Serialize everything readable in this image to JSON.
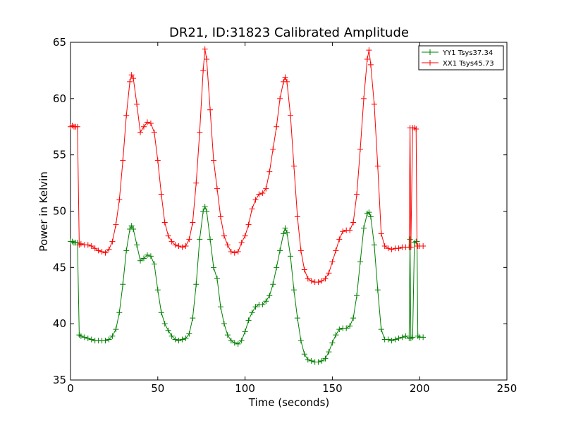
{
  "chart_data": {
    "type": "line",
    "title": "DR21, ID:31823 Calibrated Amplitude",
    "xlabel": "Time (seconds)",
    "ylabel": "Power in Kelvin",
    "xlim": [
      0,
      250
    ],
    "ylim": [
      35,
      65
    ],
    "xticks": [
      "0",
      "50",
      "100",
      "150",
      "200",
      "250"
    ],
    "yticks": [
      "35",
      "40",
      "45",
      "50",
      "55",
      "60",
      "65"
    ],
    "grid": false,
    "legend_position": "top-right",
    "marker": "plus",
    "series": [
      {
        "name": "YY1 Tsys37.34",
        "color": "#008000",
        "x": [
          0,
          1,
          2,
          3,
          4,
          5,
          6,
          8,
          10,
          12,
          14,
          16,
          18,
          20,
          22,
          24,
          26,
          28,
          30,
          32,
          34,
          35,
          36,
          38,
          40,
          42,
          44,
          46,
          48,
          50,
          52,
          54,
          56,
          58,
          60,
          62,
          64,
          66,
          68,
          70,
          72,
          74,
          76,
          77,
          78,
          80,
          82,
          84,
          86,
          88,
          90,
          92,
          94,
          96,
          98,
          100,
          102,
          104,
          106,
          108,
          110,
          112,
          114,
          116,
          118,
          120,
          122,
          123,
          124,
          126,
          128,
          130,
          132,
          134,
          136,
          138,
          140,
          142,
          144,
          146,
          148,
          150,
          152,
          154,
          156,
          158,
          160,
          162,
          164,
          166,
          168,
          170,
          171,
          172,
          174,
          176,
          178,
          180,
          182,
          184,
          186,
          188,
          190,
          192,
          194,
          194.5,
          195,
          196,
          197,
          198,
          198.5,
          199,
          200,
          202
        ],
        "y": [
          47.3,
          47.3,
          47.2,
          47.2,
          47.2,
          39.0,
          38.9,
          38.8,
          38.7,
          38.6,
          38.5,
          38.5,
          38.5,
          38.5,
          38.6,
          38.9,
          39.5,
          41.0,
          43.5,
          46.5,
          48.4,
          48.7,
          48.4,
          47.0,
          45.6,
          45.8,
          46.1,
          46.0,
          45.3,
          43.0,
          41.0,
          40.0,
          39.4,
          38.9,
          38.6,
          38.5,
          38.6,
          38.7,
          39.1,
          40.5,
          43.5,
          47.5,
          50.0,
          50.4,
          50.0,
          47.5,
          45.0,
          44.0,
          41.5,
          40.0,
          39.0,
          38.5,
          38.3,
          38.2,
          38.5,
          39.3,
          40.3,
          41.0,
          41.5,
          41.7,
          41.7,
          42.0,
          42.5,
          43.5,
          45.0,
          46.5,
          48.0,
          48.5,
          48.1,
          46.0,
          43.0,
          40.5,
          38.5,
          37.3,
          36.8,
          36.7,
          36.6,
          36.6,
          36.7,
          36.9,
          37.5,
          38.3,
          39.0,
          39.5,
          39.6,
          39.6,
          39.8,
          40.5,
          42.5,
          45.5,
          48.5,
          49.8,
          49.9,
          49.5,
          47.0,
          43.0,
          39.5,
          38.6,
          38.6,
          38.5,
          38.6,
          38.7,
          38.8,
          38.9,
          38.7,
          47.5,
          38.7,
          38.8,
          47.2,
          47.3,
          47.3,
          38.9,
          38.8,
          38.8
        ]
      },
      {
        "name": "XX1 Tsys45.73",
        "color": "#ff0000",
        "x": [
          0,
          1,
          2,
          3,
          4,
          5,
          6,
          8,
          10,
          12,
          14,
          16,
          18,
          20,
          22,
          24,
          26,
          28,
          30,
          32,
          34,
          35,
          36,
          38,
          40,
          42,
          44,
          46,
          48,
          50,
          52,
          54,
          56,
          58,
          60,
          62,
          64,
          66,
          68,
          70,
          72,
          74,
          76,
          77,
          78,
          80,
          82,
          84,
          86,
          88,
          90,
          92,
          94,
          96,
          98,
          100,
          102,
          104,
          106,
          108,
          110,
          112,
          114,
          116,
          118,
          120,
          122,
          123,
          124,
          126,
          128,
          130,
          132,
          134,
          136,
          138,
          140,
          142,
          144,
          146,
          148,
          150,
          152,
          154,
          156,
          158,
          160,
          162,
          164,
          166,
          168,
          170,
          171,
          172,
          174,
          176,
          178,
          180,
          182,
          184,
          186,
          188,
          190,
          192,
          194,
          194.5,
          195,
          196,
          197,
          198,
          198.5,
          199,
          200,
          202
        ],
        "y": [
          57.5,
          57.6,
          57.5,
          57.5,
          57.5,
          47.0,
          47.1,
          47.0,
          47.0,
          46.9,
          46.7,
          46.5,
          46.4,
          46.3,
          46.6,
          47.3,
          48.8,
          51.0,
          54.5,
          58.5,
          61.5,
          62.1,
          61.8,
          59.5,
          57.0,
          57.5,
          57.9,
          57.8,
          57.0,
          54.5,
          51.5,
          49.0,
          47.8,
          47.3,
          47.0,
          46.9,
          46.8,
          46.9,
          47.5,
          49.0,
          52.5,
          57.0,
          62.5,
          64.4,
          63.5,
          59.0,
          54.5,
          52.0,
          49.5,
          47.8,
          47.0,
          46.4,
          46.3,
          46.4,
          47.2,
          47.8,
          48.8,
          50.2,
          51.0,
          51.5,
          51.6,
          52.0,
          53.5,
          55.5,
          57.5,
          60.0,
          61.5,
          61.9,
          61.5,
          58.5,
          54.0,
          49.5,
          46.5,
          44.8,
          44.0,
          43.8,
          43.7,
          43.7,
          43.8,
          44.0,
          44.5,
          45.5,
          46.5,
          47.5,
          48.2,
          48.3,
          48.3,
          49.0,
          51.5,
          55.5,
          60.0,
          63.5,
          64.3,
          63.0,
          59.5,
          54.0,
          48.0,
          46.9,
          46.7,
          46.6,
          46.7,
          46.7,
          46.8,
          46.8,
          46.8,
          57.4,
          46.8,
          57.4,
          57.4,
          57.3,
          46.9,
          46.9,
          46.9,
          46.9
        ]
      }
    ]
  }
}
